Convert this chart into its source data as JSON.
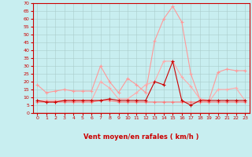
{
  "x": [
    0,
    1,
    2,
    3,
    4,
    5,
    6,
    7,
    8,
    9,
    10,
    11,
    12,
    13,
    14,
    15,
    16,
    17,
    18,
    19,
    20,
    21,
    22,
    23
  ],
  "series": [
    {
      "color": "#ff9999",
      "values": [
        18,
        13,
        14,
        15,
        14,
        14,
        14,
        30,
        20,
        13,
        22,
        18,
        13,
        46,
        60,
        68,
        58,
        25,
        9,
        8,
        26,
        28,
        27,
        27
      ]
    },
    {
      "color": "#ffaaaa",
      "values": [
        8,
        8,
        8,
        8,
        8,
        8,
        8,
        20,
        16,
        9,
        9,
        13,
        18,
        20,
        33,
        33,
        23,
        17,
        9,
        7,
        15,
        15,
        16,
        8
      ]
    },
    {
      "color": "#ff7777",
      "values": [
        7,
        7,
        7,
        7,
        7,
        7,
        7,
        8,
        8,
        7,
        7,
        7,
        7,
        7,
        7,
        7,
        7,
        7,
        7,
        7,
        7,
        7,
        7,
        7
      ]
    },
    {
      "color": "#cc0000",
      "values": [
        8,
        7,
        7,
        8,
        8,
        8,
        8,
        8,
        9,
        8,
        8,
        8,
        8,
        20,
        18,
        33,
        8,
        5,
        8,
        8,
        8,
        8,
        8,
        8
      ]
    }
  ],
  "ylim": [
    0,
    70
  ],
  "yticks": [
    0,
    5,
    10,
    15,
    20,
    25,
    30,
    35,
    40,
    45,
    50,
    55,
    60,
    65,
    70
  ],
  "xticks": [
    0,
    1,
    2,
    3,
    4,
    5,
    6,
    7,
    8,
    9,
    10,
    11,
    12,
    13,
    14,
    15,
    16,
    17,
    18,
    19,
    20,
    21,
    22,
    23
  ],
  "xlabel": "Vent moyen/en rafales ( km/h )",
  "bg_color": "#c8eef0",
  "grid_color": "#aacccc",
  "axis_color": "#cc0000",
  "arrow_symbols": [
    "↗",
    "↑",
    "↑",
    "↖",
    "←",
    "↖",
    "←",
    "↙",
    "←",
    "←",
    "←",
    "←",
    "←",
    "→",
    "→",
    "→",
    "→",
    "→",
    "↖",
    "↖",
    "↖",
    "↑",
    "↗",
    "↖"
  ]
}
